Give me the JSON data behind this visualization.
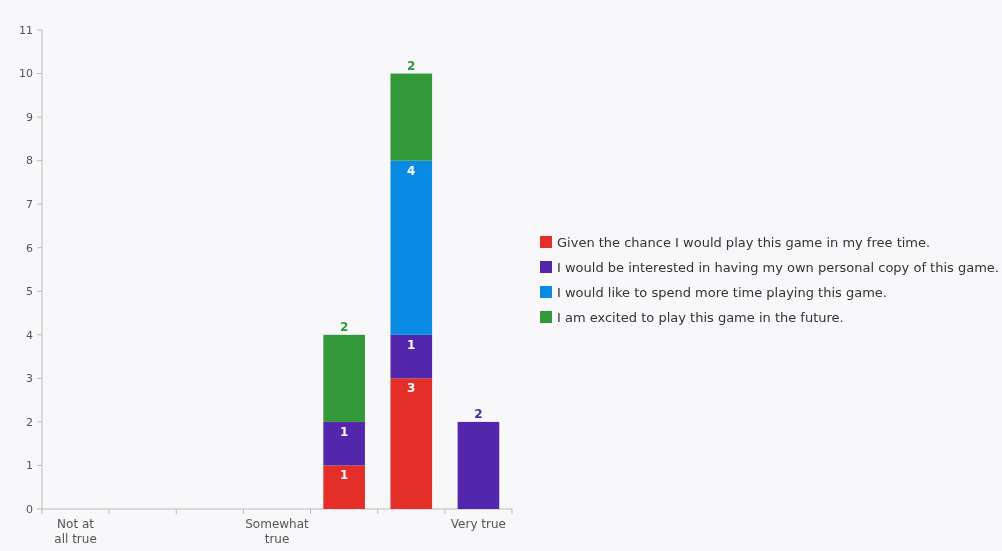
{
  "chart_data": {
    "type": "bar",
    "stacked": true,
    "categories": [
      "Not at all true",
      null,
      null,
      "Somewhat true",
      null,
      null,
      "Very true"
    ],
    "series": [
      {
        "name": "Given the chance I would play this game in my free time.",
        "color": "#e32f27",
        "values": [
          null,
          null,
          null,
          null,
          1,
          3,
          null
        ]
      },
      {
        "name": "I would be interested in having my own personal copy of this game.",
        "color": "#5327ab",
        "values": [
          null,
          null,
          null,
          null,
          1,
          1,
          2
        ]
      },
      {
        "name": "I would like to spend more time playing this game.",
        "color": "#0a8be3",
        "values": [
          null,
          null,
          null,
          null,
          null,
          4,
          null
        ]
      },
      {
        "name": "I am excited to play this game in the future.",
        "color": "#33983a",
        "values": [
          null,
          null,
          null,
          null,
          2,
          2,
          null
        ]
      }
    ],
    "ylim": [
      0,
      11
    ],
    "yticks": [
      0,
      1,
      2,
      3,
      4,
      5,
      6,
      7,
      8,
      9,
      10,
      11
    ],
    "grid": false,
    "legend": "right",
    "data_labels": true
  }
}
